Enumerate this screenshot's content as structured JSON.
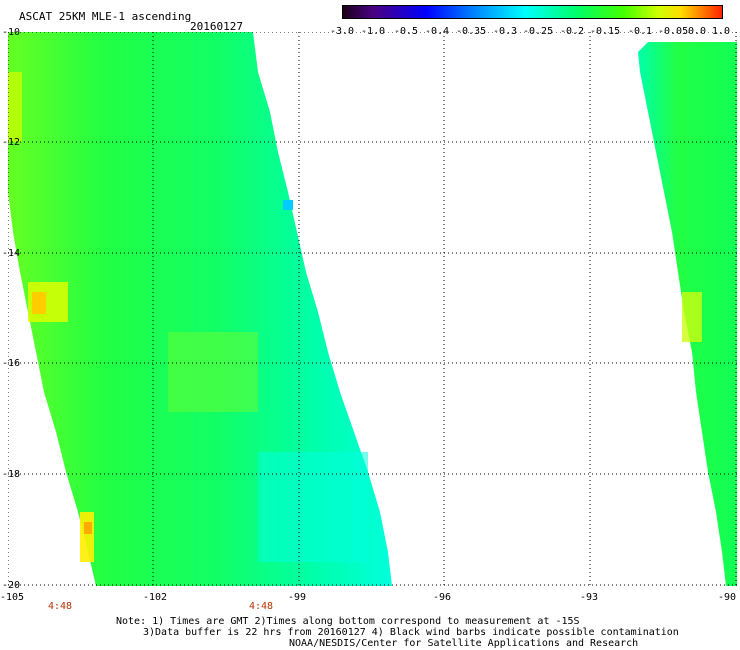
{
  "header": {
    "title": "ASCAT 25KM MLE-1 ascending",
    "date": "20160127"
  },
  "colorbar": {
    "labels": [
      "-3.0",
      "-1.0",
      "-0.5",
      "-0.4",
      "-0.35",
      "-0.3",
      "-0.25",
      "-0.2",
      "-0.15",
      "-0.1",
      "-0.05",
      "0.0",
      "1.0"
    ]
  },
  "map": {
    "lat_labels": [
      "-10",
      "-12",
      "-14",
      "-16",
      "-18",
      "-20"
    ],
    "lon_labels": [
      "-105",
      "-102",
      "-99",
      "-96",
      "-93",
      "-90"
    ],
    "time_labels": [
      "4:48",
      "4:48"
    ]
  },
  "notes": {
    "line1": "Note: 1) Times are GMT 2)Times along bottom correspond to measurement at -15S",
    "line2": "3)Data buffer is 22 hrs from 20160127 4) Black wind barbs indicate possible contamination",
    "line3": "NOAA/NESDIS/Center for Satellite Applications and Research"
  }
}
